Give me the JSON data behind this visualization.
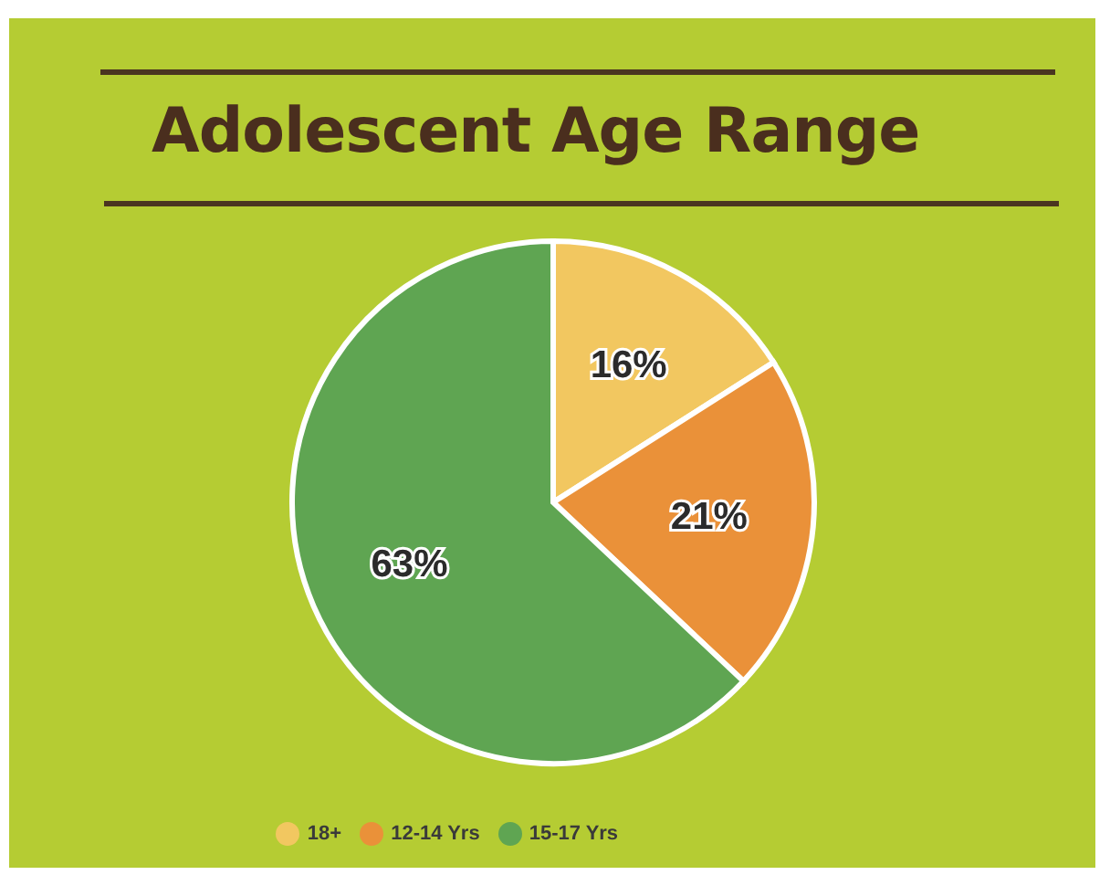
{
  "chart_data": {
    "type": "pie",
    "title": "Adolescent Age Range",
    "categories": [
      "18+",
      "12-14 Yrs",
      "15-17 Yrs"
    ],
    "values": [
      16,
      21,
      63
    ],
    "value_labels": [
      "16%",
      "21%",
      "63%"
    ],
    "colors": [
      "#f2c760",
      "#ea9139",
      "#5fa552"
    ],
    "legend": "bottom"
  }
}
